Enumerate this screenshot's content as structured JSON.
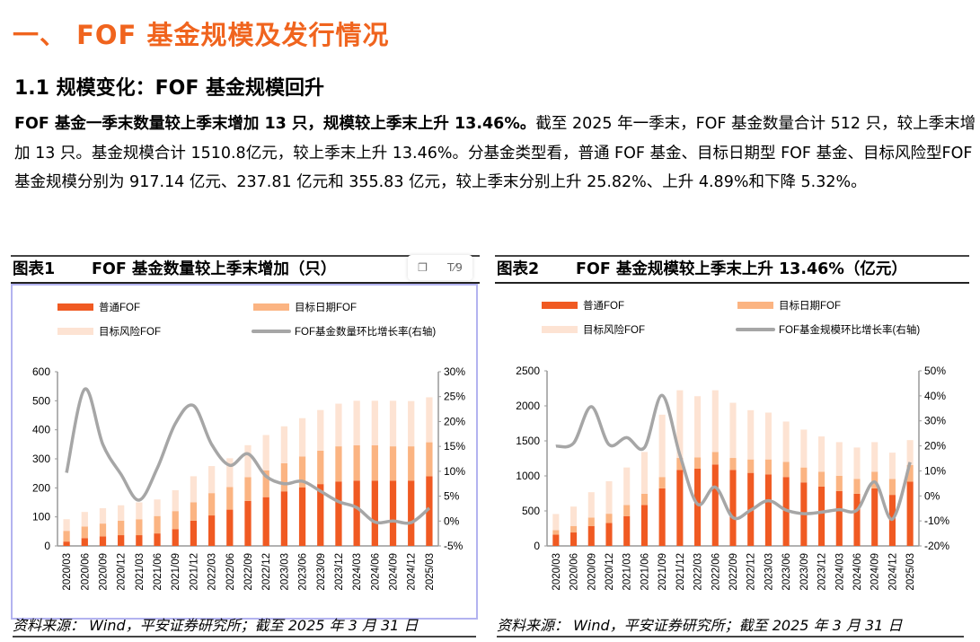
{
  "section_heading": "一、  FOF 基金规模及发行情况",
  "subsection_heading": "1.1 规模变化：FOF 基金规模回升",
  "paragraph": {
    "bold_lead": "FOF 基金一季末数量较上季末增加 13 只，规模较上季末上升 13.46%。",
    "body": "截至 2025 年一季末，FOF 基金数量合计 512 只，较上季末增加 13 只。基金规模合计 1510.8亿元，较上季末上升 13.46%。分基金类型看，普通 FOF 基金、目标日期型 FOF 基金、目标风险型FOF 基金规模分别为 917.14 亿元、237.81 亿元和 355.83 亿元，较上季末分别上升 25.82%、上升 4.89%和下降 5.32%。"
  },
  "toolbar": {
    "copy_icon": "copy-icon",
    "translate_icon": "text-format-icon",
    "translate_label": "T⁄9"
  },
  "colors": {
    "heading": "#F0641E",
    "regular": "#F05A22",
    "target_date": "#FBB482",
    "target_risk": "#FDE3D3",
    "line": "#A6A6A6"
  },
  "figures": [
    {
      "number": "图表1",
      "title": "FOF 基金数量较上季末增加（只）",
      "source": "资料来源： Wind，平安证券研究所；截至 2025 年 3 月 31 日"
    },
    {
      "number": "图表2",
      "title": "FOF 基金规模较上季末上升 13.46%（亿元）",
      "source": "资料来源： Wind，平安证券研究所；截至 2025 年 3 月 31 日"
    }
  ],
  "chart_data": [
    {
      "type": "bar",
      "stacked": true,
      "categories": [
        "2020/03",
        "2020/06",
        "2020/09",
        "2020/12",
        "2021/03",
        "2021/06",
        "2021/09",
        "2021/12",
        "2022/03",
        "2022/06",
        "2022/09",
        "2022/12",
        "2023/03",
        "2023/06",
        "2023/09",
        "2023/12",
        "2024/03",
        "2024/06",
        "2024/09",
        "2024/12",
        "2025/03"
      ],
      "series": [
        {
          "name": "普通FOF",
          "values": [
            15,
            27,
            33,
            37,
            37,
            43,
            58,
            87,
            105,
            125,
            155,
            168,
            188,
            202,
            213,
            222,
            225,
            225,
            225,
            225,
            240
          ]
        },
        {
          "name": "目标日期FOF",
          "values": [
            37,
            40,
            44,
            50,
            55,
            60,
            62,
            63,
            77,
            78,
            82,
            92,
            97,
            106,
            115,
            121,
            122,
            122,
            118,
            118,
            117
          ]
        },
        {
          "name": "目标风险FOF",
          "values": [
            40,
            50,
            53,
            53,
            58,
            57,
            72,
            90,
            93,
            99,
            110,
            122,
            127,
            132,
            140,
            147,
            153,
            153,
            157,
            156,
            155
          ]
        },
        {
          "name": "FOF基金数量环比增长率(右轴)",
          "type": "line",
          "axis": "right",
          "values": [
            9.7,
            26.5,
            15.4,
            9.4,
            4.2,
            10.6,
            19.6,
            23.2,
            15.4,
            11.2,
            13.5,
            9.0,
            7.5,
            8.0,
            6.0,
            3.9,
            2.7,
            -0.2,
            0.0,
            -0.3,
            2.6
          ]
        }
      ],
      "ylim": [
        0,
        600
      ],
      "yticks": [
        "0",
        "100",
        "200",
        "300",
        "400",
        "500",
        "600"
      ],
      "y2lim": [
        -5,
        30
      ],
      "y2ticks": [
        "-5%",
        "0%",
        "5%",
        "10%",
        "15%",
        "20%",
        "25%",
        "30%"
      ],
      "legend": "top",
      "grid": false
    },
    {
      "type": "bar",
      "stacked": true,
      "categories": [
        "2020/03",
        "2020/06",
        "2020/09",
        "2020/12",
        "2021/03",
        "2021/06",
        "2021/09",
        "2021/12",
        "2022/03",
        "2022/06",
        "2022/09",
        "2022/12",
        "2023/03",
        "2023/06",
        "2023/09",
        "2023/12",
        "2024/03",
        "2024/06",
        "2024/09",
        "2024/12",
        "2025/03"
      ],
      "series": [
        {
          "name": "普通FOF",
          "values": [
            162,
            192,
            285,
            328,
            426,
            583,
            822,
            1086,
            1103,
            1163,
            1086,
            1043,
            1022,
            984,
            907,
            847,
            784,
            745,
            822,
            729,
            917.14
          ]
        },
        {
          "name": "目标日期FOF",
          "values": [
            64,
            93,
            120,
            132,
            157,
            162,
            162,
            170,
            162,
            179,
            170,
            192,
            213,
            217,
            213,
            213,
            217,
            213,
            238,
            227,
            237.81
          ]
        },
        {
          "name": "目标风险FOF",
          "values": [
            230,
            277,
            362,
            464,
            537,
            597,
            890,
            967,
            873,
            881,
            788,
            703,
            669,
            575,
            541,
            503,
            481,
            447,
            422,
            376,
            355.83
          ]
        },
        {
          "name": "FOF基金规模环比增长率(右轴)",
          "type": "line",
          "axis": "right",
          "values": [
            19.9,
            21.1,
            35.7,
            20.5,
            23.3,
            19.3,
            40.2,
            16.4,
            -3.3,
            3.5,
            -8.7,
            -5.7,
            -1.9,
            -5.7,
            -7.1,
            -6.5,
            -5.5,
            -5.7,
            5.6,
            -9.3,
            13.46
          ]
        }
      ],
      "ylim": [
        0,
        2500
      ],
      "yticks": [
        "0",
        "500",
        "1000",
        "1500",
        "2000",
        "2500"
      ],
      "y2lim": [
        -20,
        50
      ],
      "y2ticks": [
        "-20%",
        "-10%",
        "0%",
        "10%",
        "20%",
        "30%",
        "40%",
        "50%"
      ],
      "legend": "top",
      "grid": false
    }
  ]
}
